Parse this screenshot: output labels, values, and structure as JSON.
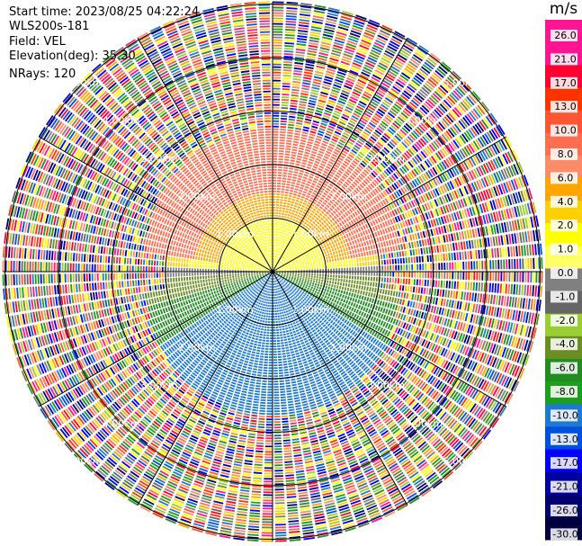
{
  "header": {
    "start_time": "Start time: 2023/08/25 04:22:24",
    "device": "WLS200s-181",
    "field": "Field: VEL",
    "elevation": "Elevation(deg): 35.30",
    "nrays": "NRays: 120"
  },
  "colorbar": {
    "unit": "m/s",
    "ticks": [
      "26.0",
      "21.0",
      "17.0",
      "13.0",
      "10.0",
      "8.0",
      "6.0",
      "4.0",
      "2.0",
      "1.0",
      "0.0",
      "-1.0",
      "-2.0",
      "-4.0",
      "-6.0",
      "-8.0",
      "-10.0",
      "-13.0",
      "-17.0",
      "-21.0",
      "-26.0",
      "-30.0"
    ],
    "colors": [
      "#ff1493",
      "#ff1493",
      "#ff0033",
      "#ff3300",
      "#ff5533",
      "#ff6e50",
      "#ff8c69",
      "#ffa500",
      "#ffd000",
      "#ffff00",
      "#ffff66",
      "#808080",
      "#666666",
      "#9acd32",
      "#6b8e23",
      "#228b22",
      "#1e9e1e",
      "#1e7ad0",
      "#0050e0",
      "#0000ff",
      "#0000a0",
      "#000070",
      "#000040"
    ]
  },
  "chart_data": {
    "type": "ppi",
    "field": "VEL",
    "unit": "m/s",
    "nrays": 120,
    "elevation_deg": 35.3,
    "range_ring_labels": [
      "1.00km",
      "2.00km",
      "3.00km",
      "4.00km",
      "5.00km"
    ],
    "range_rings_km": [
      1,
      2,
      3,
      4,
      5
    ]
  }
}
